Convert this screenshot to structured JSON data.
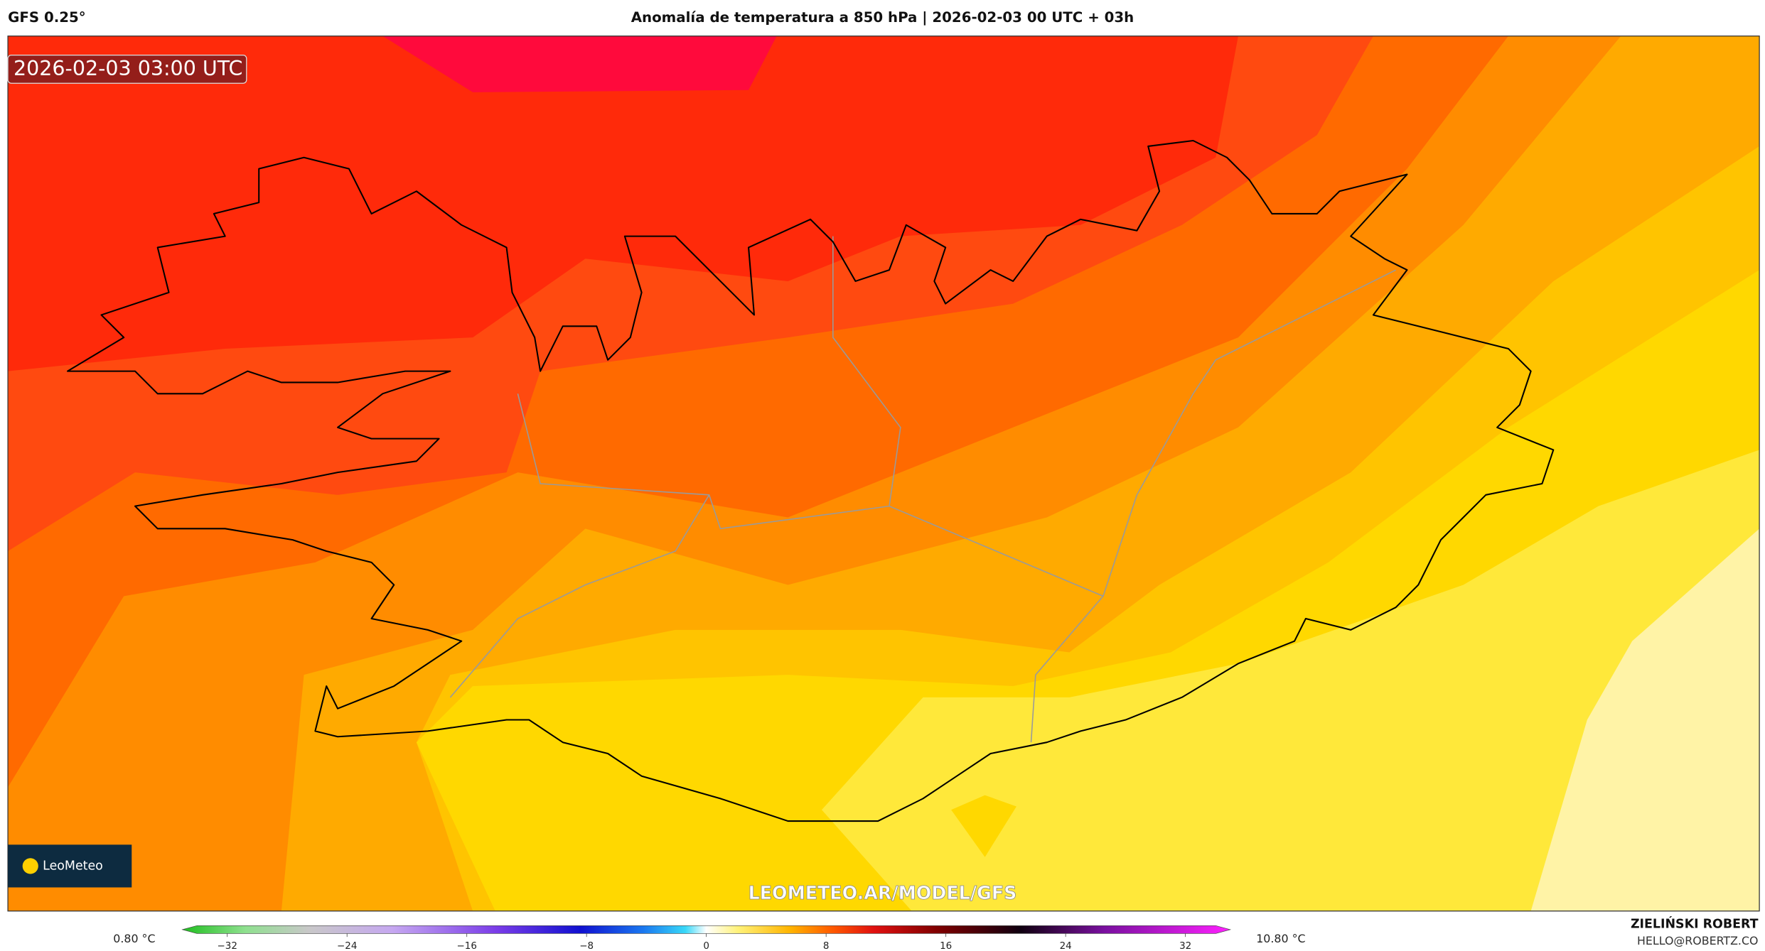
{
  "header": {
    "model": "GFS 0.25°",
    "title": "Anomalía de temperatura a 850 hPa | 2026-02-03 00 UTC + 03h"
  },
  "map": {
    "timestamp": "2026-02-03 03:00 UTC",
    "logo": "LeoMeteo",
    "watermark": "LEOMETEO.AR/MODEL/GFS"
  },
  "colorbar": {
    "min_label": "0.80 °C",
    "max_label": "10.80 °C",
    "lim": [
      -35,
      35
    ],
    "ticks": [
      {
        "value": -32,
        "label": "−32"
      },
      {
        "value": -24,
        "label": "−24"
      },
      {
        "value": -16,
        "label": "−16"
      },
      {
        "value": -8,
        "label": "−8"
      },
      0,
      8,
      16,
      24,
      32
    ]
  },
  "footer": {
    "author": "ZIELIŃSKI ROBERT",
    "email": "HELLO@ROBERTZ.CO"
  }
}
